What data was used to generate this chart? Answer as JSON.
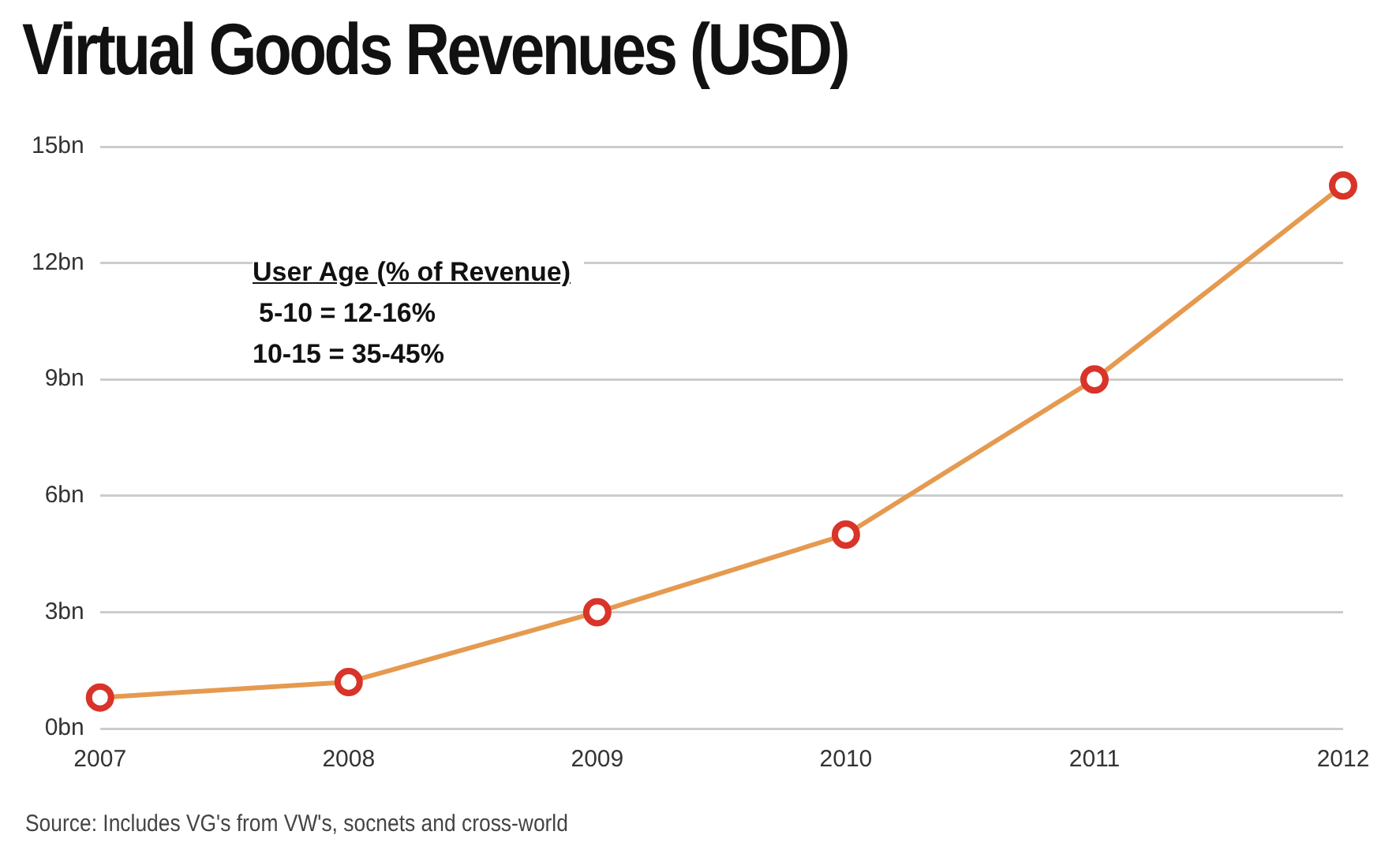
{
  "chart_data": {
    "type": "line",
    "title": "Virtual Goods Revenues (USD)",
    "categories": [
      "2007",
      "2008",
      "2009",
      "2010",
      "2011",
      "2012"
    ],
    "series": [
      {
        "color": "#e59a50",
        "values": [
          0.8,
          1.2,
          3,
          5,
          9,
          14
        ]
      }
    ],
    "marker": "circle",
    "ylim": [
      0,
      15
    ],
    "yticks": [
      {
        "value": 0,
        "label": "0bn"
      },
      {
        "value": 3,
        "label": "3bn"
      },
      {
        "value": 6,
        "label": "6bn"
      },
      {
        "value": 9,
        "label": "9bn"
      },
      {
        "value": 12,
        "label": "12bn"
      },
      {
        "value": 15,
        "label": "15bn"
      }
    ],
    "grid": "y",
    "legend": false,
    "annotations": [
      "User Age (% of Revenue)",
      "5-10 = 12-16%",
      "10-15 = 35-45%",
      "Source: Includes VG's from VW's, socnets and cross-world"
    ]
  }
}
